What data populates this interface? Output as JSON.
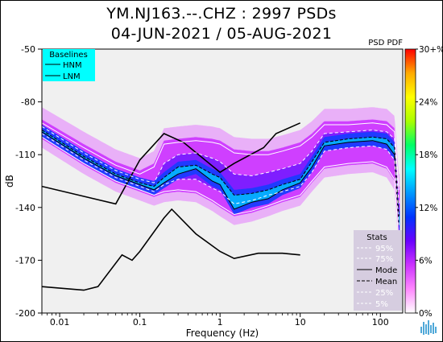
{
  "chart_data": {
    "type": "heatmap",
    "title_line1": "YM.NJ163.--.CHZ : 2997 PSDs",
    "title_line2": "04-JUN-2021 / 05-AUG-2021",
    "xlabel": "Frequency (Hz)",
    "ylabel": "dB",
    "x_scale": "log",
    "xlim": [
      0.006,
      190
    ],
    "ylim": [
      -200,
      -50
    ],
    "x_ticks": [
      {
        "value": 0.01,
        "label": "0.01"
      },
      {
        "value": 0.1,
        "label": "0.1"
      },
      {
        "value": 1,
        "label": "1"
      },
      {
        "value": 10,
        "label": "10"
      },
      {
        "value": 100,
        "label": "100"
      }
    ],
    "y_ticks": [
      {
        "value": -50,
        "label": "-50"
      },
      {
        "value": -80,
        "label": "-80"
      },
      {
        "value": -110,
        "label": "-110"
      },
      {
        "value": -140,
        "label": "-140"
      },
      {
        "value": -170,
        "label": "-170"
      },
      {
        "value": -200,
        "label": "-200"
      }
    ],
    "colorbar": {
      "title": "PSD PDF",
      "range": [
        0,
        30
      ],
      "ticks": [
        "0%",
        "6%",
        "12%",
        "18%",
        "24%",
        "30+%"
      ],
      "colors": [
        "#ffffff",
        "#ff88ff",
        "#cc33ff",
        "#6a00ff",
        "#0033ff",
        "#0099ff",
        "#00ffff",
        "#00ff66",
        "#aaff00",
        "#ffff00",
        "#ffaa00",
        "#ff0000"
      ]
    },
    "baselines_legend": {
      "title": "Baselines",
      "items": [
        "HNM",
        "LNM"
      ],
      "background": "#00ffff"
    },
    "stats_legend": {
      "title": "Stats",
      "items": [
        "95%",
        "75%",
        "Mode",
        "Mean",
        "25%",
        "5%"
      ],
      "background": "#d6cde0"
    },
    "series": [
      {
        "name": "HNM",
        "points": [
          [
            0.006,
            -128
          ],
          [
            0.05,
            -138
          ],
          [
            0.1,
            -113
          ],
          [
            0.2,
            -98
          ],
          [
            0.35,
            -103
          ],
          [
            1.0,
            -120
          ],
          [
            1.5,
            -115
          ],
          [
            3.5,
            -106
          ],
          [
            5,
            -98
          ],
          [
            10,
            -92
          ]
        ]
      },
      {
        "name": "LNM",
        "points": [
          [
            0.006,
            -185
          ],
          [
            0.02,
            -187
          ],
          [
            0.03,
            -185
          ],
          [
            0.06,
            -167
          ],
          [
            0.08,
            -170
          ],
          [
            0.1,
            -165
          ],
          [
            0.2,
            -146
          ],
          [
            0.25,
            -141
          ],
          [
            0.5,
            -155
          ],
          [
            1,
            -165
          ],
          [
            1.5,
            -169
          ],
          [
            3,
            -166
          ],
          [
            6,
            -166
          ],
          [
            10,
            -167
          ]
        ]
      },
      {
        "name": "Mode",
        "points": [
          [
            0.006,
            -97
          ],
          [
            0.02,
            -112
          ],
          [
            0.05,
            -122
          ],
          [
            0.1,
            -127
          ],
          [
            0.15,
            -130
          ],
          [
            0.2,
            -126
          ],
          [
            0.3,
            -121
          ],
          [
            0.5,
            -118
          ],
          [
            0.8,
            -125
          ],
          [
            1.0,
            -127
          ],
          [
            1.5,
            -141
          ],
          [
            2.5,
            -137
          ],
          [
            4,
            -135
          ],
          [
            6,
            -130
          ],
          [
            10,
            -126
          ],
          [
            14,
            -117
          ],
          [
            20,
            -105
          ],
          [
            40,
            -103
          ],
          [
            80,
            -102
          ],
          [
            120,
            -104
          ],
          [
            150,
            -110
          ],
          [
            170,
            -150
          ]
        ]
      },
      {
        "name": "Mean",
        "points": [
          [
            0.006,
            -96
          ],
          [
            0.02,
            -111
          ],
          [
            0.05,
            -121
          ],
          [
            0.1,
            -126
          ],
          [
            0.15,
            -128
          ],
          [
            0.2,
            -123
          ],
          [
            0.3,
            -117
          ],
          [
            0.5,
            -116
          ],
          [
            0.8,
            -121
          ],
          [
            1.0,
            -123
          ],
          [
            1.5,
            -133
          ],
          [
            2.5,
            -132
          ],
          [
            4,
            -130
          ],
          [
            6,
            -127
          ],
          [
            10,
            -124
          ],
          [
            14,
            -114
          ],
          [
            20,
            -103
          ],
          [
            40,
            -101
          ],
          [
            80,
            -100
          ],
          [
            120,
            -101
          ],
          [
            150,
            -106
          ],
          [
            170,
            -145
          ]
        ]
      },
      {
        "name": "95%",
        "points": [
          [
            0.006,
            -92
          ],
          [
            0.02,
            -106
          ],
          [
            0.05,
            -116
          ],
          [
            0.1,
            -121
          ],
          [
            0.15,
            -117
          ],
          [
            0.2,
            -104
          ],
          [
            0.3,
            -103
          ],
          [
            0.5,
            -102
          ],
          [
            0.8,
            -103
          ],
          [
            1.0,
            -104
          ],
          [
            1.5,
            -109
          ],
          [
            2.5,
            -110
          ],
          [
            4,
            -110
          ],
          [
            6,
            -108
          ],
          [
            10,
            -105
          ],
          [
            14,
            -100
          ],
          [
            20,
            -93
          ],
          [
            40,
            -93
          ],
          [
            80,
            -92
          ],
          [
            120,
            -93
          ],
          [
            150,
            -97
          ],
          [
            170,
            -130
          ]
        ]
      },
      {
        "name": "75%",
        "points": [
          [
            0.006,
            -94
          ],
          [
            0.02,
            -109
          ],
          [
            0.05,
            -119
          ],
          [
            0.1,
            -124
          ],
          [
            0.15,
            -126
          ],
          [
            0.2,
            -115
          ],
          [
            0.3,
            -110
          ],
          [
            0.5,
            -109
          ],
          [
            0.8,
            -112
          ],
          [
            1.0,
            -114
          ],
          [
            1.5,
            -121
          ],
          [
            2.5,
            -122
          ],
          [
            4,
            -120
          ],
          [
            6,
            -118
          ],
          [
            10,
            -115
          ],
          [
            14,
            -108
          ],
          [
            20,
            -98
          ],
          [
            40,
            -97
          ],
          [
            80,
            -96
          ],
          [
            120,
            -97
          ],
          [
            150,
            -101
          ],
          [
            170,
            -138
          ]
        ]
      },
      {
        "name": "25%",
        "points": [
          [
            0.006,
            -98
          ],
          [
            0.02,
            -113
          ],
          [
            0.05,
            -123
          ],
          [
            0.1,
            -128
          ],
          [
            0.15,
            -131
          ],
          [
            0.2,
            -127
          ],
          [
            0.3,
            -124
          ],
          [
            0.5,
            -124
          ],
          [
            0.8,
            -129
          ],
          [
            1.0,
            -131
          ],
          [
            1.5,
            -138
          ],
          [
            2.5,
            -136
          ],
          [
            4,
            -133
          ],
          [
            6,
            -131
          ],
          [
            10,
            -128
          ],
          [
            14,
            -120
          ],
          [
            20,
            -108
          ],
          [
            40,
            -106
          ],
          [
            80,
            -105
          ],
          [
            120,
            -107
          ],
          [
            150,
            -113
          ],
          [
            170,
            -150
          ]
        ]
      },
      {
        "name": "5%",
        "points": [
          [
            0.006,
            -100
          ],
          [
            0.02,
            -115
          ],
          [
            0.05,
            -125
          ],
          [
            0.1,
            -130
          ],
          [
            0.15,
            -133
          ],
          [
            0.2,
            -131
          ],
          [
            0.3,
            -130
          ],
          [
            0.5,
            -131
          ],
          [
            0.8,
            -136
          ],
          [
            1.0,
            -139
          ],
          [
            1.5,
            -144
          ],
          [
            2.5,
            -142
          ],
          [
            4,
            -139
          ],
          [
            6,
            -136
          ],
          [
            10,
            -133
          ],
          [
            14,
            -125
          ],
          [
            20,
            -117
          ],
          [
            40,
            -115
          ],
          [
            80,
            -114
          ],
          [
            120,
            -117
          ],
          [
            150,
            -124
          ],
          [
            170,
            -160
          ]
        ]
      }
    ]
  }
}
